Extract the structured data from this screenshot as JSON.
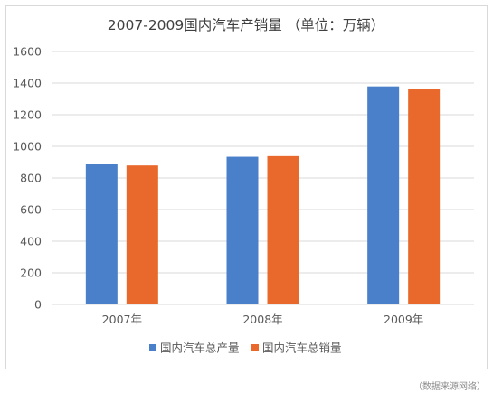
{
  "source_note": "（数据来源网络）",
  "colors": {
    "production": "#4a7fc9",
    "sales": "#e8692b",
    "gridline": "#d9d9d9",
    "frame_border": "#d9d9d9",
    "text": "#595959",
    "title_text": "#404040"
  },
  "chart_data": {
    "type": "bar",
    "title": "2007-2009国内汽车产销量 （单位：万辆）",
    "xlabel": "",
    "ylabel": "",
    "categories": [
      "2007年",
      "2008年",
      "2009年"
    ],
    "series": [
      {
        "name": "国内汽车总产量",
        "values": [
          888,
          934,
          1379
        ]
      },
      {
        "name": "国内汽车总销量",
        "values": [
          879,
          938,
          1364
        ]
      }
    ],
    "ylim": [
      0,
      1600
    ],
    "yticks": [
      0,
      200,
      400,
      600,
      800,
      1000,
      1200,
      1400,
      1600
    ],
    "grid": true,
    "legend_position": "bottom"
  }
}
